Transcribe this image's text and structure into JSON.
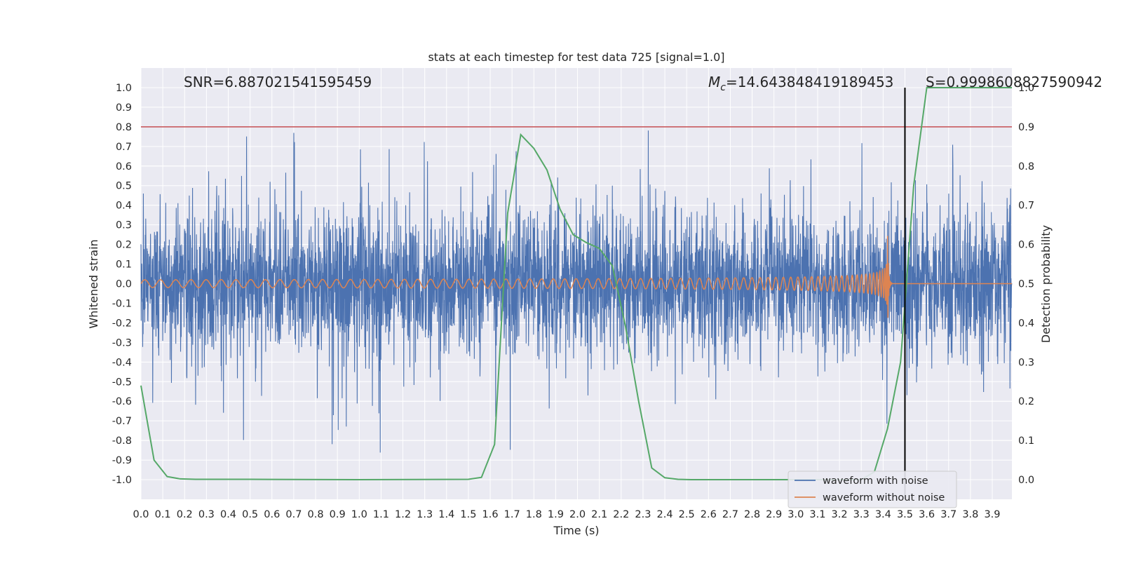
{
  "chart_data": {
    "type": "line",
    "title": "stats at each timestep for test data 725 [signal=1.0]",
    "xlabel": "Time (s)",
    "ylabel": "Whitened strain",
    "ylabel_right": "Detection probability",
    "xlim": [
      0.0,
      3.99
    ],
    "ylim": [
      -1.1,
      1.1
    ],
    "ylim_right": [
      -0.05,
      1.05
    ],
    "x_ticks": [
      "0.0",
      "0.1",
      "0.2",
      "0.3",
      "0.4",
      "0.5",
      "0.6",
      "0.7",
      "0.8",
      "0.9",
      "1.0",
      "1.1",
      "1.2",
      "1.3",
      "1.4",
      "1.5",
      "1.6",
      "1.7",
      "1.8",
      "1.9",
      "2.0",
      "2.1",
      "2.2",
      "2.3",
      "2.4",
      "2.5",
      "2.6",
      "2.7",
      "2.8",
      "2.9",
      "3.0",
      "3.1",
      "3.2",
      "3.3",
      "3.4",
      "3.5",
      "3.6",
      "3.7",
      "3.8",
      "3.9"
    ],
    "y_ticks": [
      "1.0",
      "0.9",
      "0.8",
      "0.7",
      "0.6",
      "0.5",
      "0.4",
      "0.3",
      "0.2",
      "0.1",
      "0.0",
      "-0.1",
      "-0.2",
      "-0.3",
      "-0.4",
      "-0.5",
      "-0.6",
      "-0.7",
      "-0.8",
      "-0.9",
      "-1.0"
    ],
    "y_ticks_right": [
      "1.0",
      "0.9",
      "0.8",
      "0.7",
      "0.6",
      "0.5",
      "0.4",
      "0.3",
      "0.2",
      "0.1",
      "0.0"
    ],
    "grid": true,
    "legend_position": "lower-right",
    "annotations": {
      "snr": "SNR=6.887021541595459",
      "mc_symbol": "M",
      "mc_sub": "c",
      "mc_value": "=14.643848419189453",
      "s_label": "S=0.9998608827590942"
    },
    "threshold_right": 0.9,
    "vline_x": 3.5,
    "series": [
      {
        "name": "waveform with noise",
        "color": "#4c72b0",
        "axis": "left",
        "description_values": "noisy whitened strain, roughly between -0.97 and 1.0"
      },
      {
        "name": "waveform without noise",
        "color": "#dd8452",
        "axis": "left",
        "chirp": {
          "start_time": 0.0,
          "merger_time": 3.42,
          "start_amplitude": 0.02,
          "peak_amplitude": 0.3
        }
      },
      {
        "name": "detection probability",
        "color": "#55a868",
        "axis": "right",
        "x": [
          0.0,
          0.06,
          0.12,
          0.18,
          0.25,
          0.5,
          1.0,
          1.5,
          1.56,
          1.62,
          1.68,
          1.74,
          1.8,
          1.86,
          1.92,
          1.98,
          2.04,
          2.1,
          2.16,
          2.22,
          2.28,
          2.34,
          2.4,
          2.46,
          2.52,
          3.0,
          3.3,
          3.36,
          3.42,
          3.48,
          3.54,
          3.6,
          3.7,
          3.8,
          3.9,
          3.99
        ],
        "y": [
          0.24,
          0.05,
          0.008,
          0.002,
          0.001,
          0.001,
          0.0,
          0.001,
          0.006,
          0.09,
          0.68,
          0.88,
          0.845,
          0.79,
          0.69,
          0.625,
          0.605,
          0.59,
          0.545,
          0.39,
          0.2,
          0.03,
          0.005,
          0.001,
          0.0,
          0.0,
          0.0,
          0.02,
          0.13,
          0.3,
          0.75,
          1.0,
          1.0,
          1.0,
          1.0,
          1.0
        ]
      }
    ]
  }
}
